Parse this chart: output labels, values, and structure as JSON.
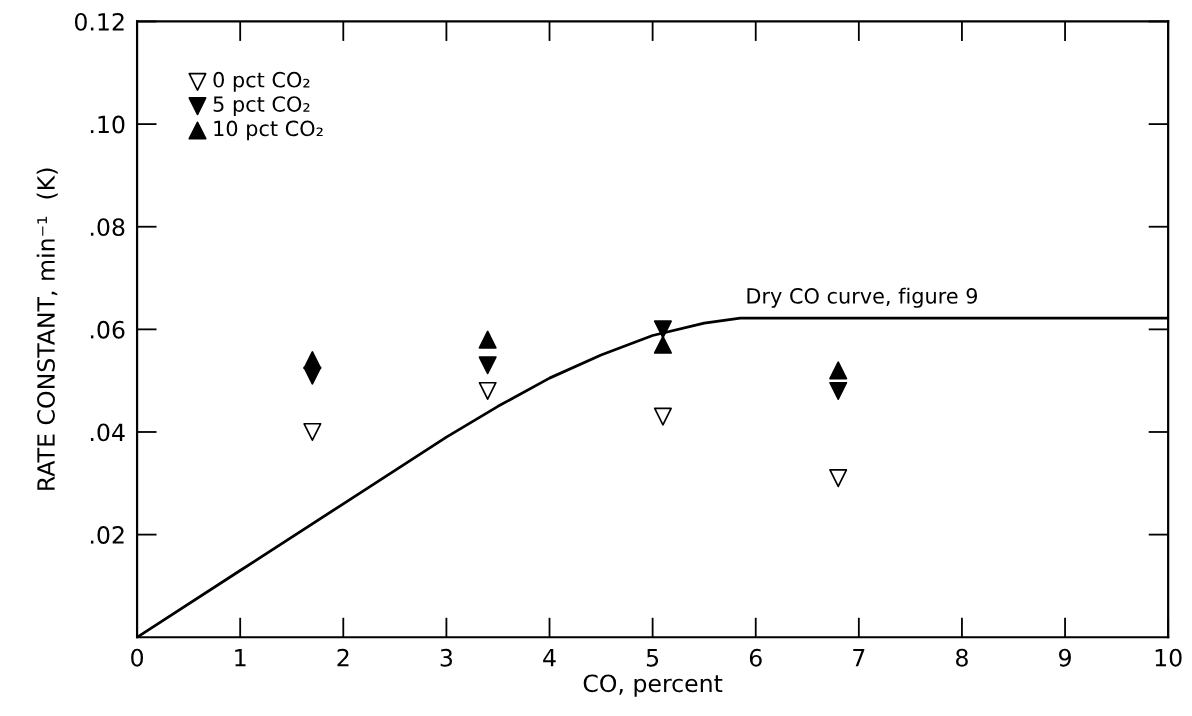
{
  "chart_data": {
    "type": "scatter",
    "xlabel": "CO, percent",
    "ylabel": "RATE CONSTANT, min⁻¹  (K)",
    "xlim": [
      0,
      10
    ],
    "xticks": [
      0,
      1,
      2,
      3,
      4,
      5,
      6,
      7,
      8,
      9,
      10
    ],
    "ylim": [
      0,
      0.12
    ],
    "yticks": [
      {
        "value": 0.02,
        "label": ".02"
      },
      {
        "value": 0.04,
        "label": ".04"
      },
      {
        "value": 0.06,
        "label": ".06"
      },
      {
        "value": 0.08,
        "label": ".08"
      },
      {
        "value": 0.1,
        "label": ".10"
      },
      {
        "value": 0.12,
        "label": "0.12"
      }
    ],
    "grid": false,
    "legend": "top left",
    "series": [
      {
        "name": "0 pct CO₂",
        "marker": "triangle_down_open",
        "color": "#000000",
        "x": [
          1.7,
          3.4,
          5.1,
          6.8
        ],
        "values": [
          0.04,
          0.048,
          0.043,
          0.031
        ]
      },
      {
        "name": "5 pct CO₂",
        "marker": "triangle_down",
        "color": "#000000",
        "x": [
          1.7,
          3.4,
          5.1,
          6.8
        ],
        "values": [
          0.051,
          0.053,
          0.06,
          0.048
        ]
      },
      {
        "name": "10 pct CO₂",
        "marker": "triangle",
        "color": "#000000",
        "x": [
          1.7,
          3.4,
          5.1,
          6.8
        ],
        "values": [
          0.054,
          0.058,
          0.057,
          0.052
        ]
      },
      {
        "type": "line",
        "marker": "none",
        "line_style": "solid",
        "color": "#000000",
        "x": [
          0,
          1,
          2,
          3,
          3.5,
          4,
          4.5,
          5,
          5.5,
          5.85,
          10
        ],
        "values": [
          0,
          0.013,
          0.026,
          0.039,
          0.045,
          0.0505,
          0.055,
          0.0588,
          0.0612,
          0.0622,
          0.0622
        ]
      }
    ],
    "annotations": [
      "Dry CO curve, figure 9"
    ]
  }
}
